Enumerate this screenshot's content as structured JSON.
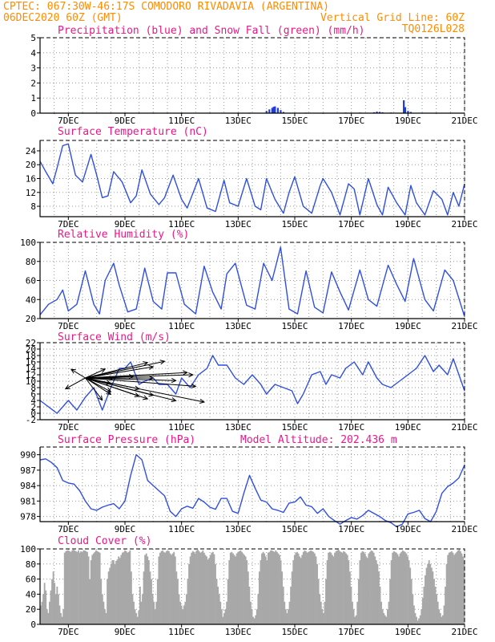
{
  "header": {
    "line1_left": "CPTEC:   067:30W-46:17S   COMODORO RIVADAVIA (ARGENTINA)",
    "line2_left": "06DEC2020 60Z (GMT)",
    "line2_right": "Vertical Grid Line: 60Z",
    "line3_right": "TQ0126L028"
  },
  "colors": {
    "header": "#ff8c00",
    "title": "#e8188a",
    "line": "#2f4fe0",
    "precip": "#1e3cdc",
    "snow": "#1ea01e",
    "cloud": "#a8a8a8",
    "grid": "#9a9a9a"
  },
  "x_ticks": [
    "7DEC",
    "9DEC",
    "11DEC",
    "13DEC",
    "15DEC",
    "17DEC",
    "19DEC",
    "21DEC"
  ],
  "chart_data": [
    {
      "type": "bar",
      "title": "Precipitation (blue) and Snow Fall (green) (mm/h)",
      "ylim": [
        0,
        5
      ],
      "yticks": [
        "0",
        "1",
        "2",
        "3",
        "4",
        "5"
      ],
      "series": [
        {
          "name": "Precipitation",
          "points": [
            [
              9.5,
              0.03
            ],
            [
              10.5,
              0.03
            ],
            [
              13.4,
              0.03
            ],
            [
              14.0,
              0.15
            ],
            [
              14.1,
              0.25
            ],
            [
              14.2,
              0.35
            ],
            [
              14.25,
              0.42
            ],
            [
              14.3,
              0.45
            ],
            [
              14.4,
              0.35
            ],
            [
              14.5,
              0.2
            ],
            [
              14.6,
              0.08
            ],
            [
              15.4,
              0.03
            ],
            [
              16.8,
              0.04
            ],
            [
              17.3,
              0.04
            ],
            [
              17.8,
              0.06
            ],
            [
              17.9,
              0.1
            ],
            [
              18.0,
              0.08
            ],
            [
              18.1,
              0.06
            ],
            [
              18.4,
              0.04
            ],
            [
              18.85,
              0.85
            ],
            [
              18.9,
              0.4
            ],
            [
              19.0,
              0.15
            ],
            [
              19.1,
              0.08
            ]
          ]
        },
        {
          "name": "Snow Fall",
          "points": [
            [
              6.5,
              0.02
            ],
            [
              7.5,
              0.03
            ],
            [
              8.5,
              0.03
            ],
            [
              9.0,
              0.02
            ],
            [
              10.0,
              0.03
            ],
            [
              11.0,
              0.02
            ],
            [
              12.0,
              0.03
            ],
            [
              13.0,
              0.02
            ],
            [
              16.0,
              0.02
            ],
            [
              19.5,
              0.03
            ],
            [
              20.0,
              0.02
            ],
            [
              20.5,
              0.03
            ]
          ]
        }
      ],
      "xlim": [
        6.0,
        21.0
      ]
    },
    {
      "type": "line",
      "title": "Surface Temperature (nC)",
      "ylim": [
        5,
        27
      ],
      "yticks": [
        "8",
        "12",
        "16",
        "20",
        "24"
      ],
      "x": [
        6.0,
        6.2,
        6.45,
        6.6,
        6.8,
        7.0,
        7.25,
        7.5,
        7.8,
        8.0,
        8.2,
        8.4,
        8.6,
        8.9,
        9.2,
        9.4,
        9.6,
        9.9,
        10.2,
        10.4,
        10.7,
        11.0,
        11.2,
        11.6,
        11.9,
        12.2,
        12.5,
        12.7,
        13.0,
        13.3,
        13.6,
        13.8,
        14.0,
        14.3,
        14.6,
        14.8,
        15.0,
        15.3,
        15.6,
        15.9,
        16.0,
        16.3,
        16.6,
        16.9,
        17.1,
        17.3,
        17.6,
        17.9,
        18.1,
        18.3,
        18.6,
        18.9,
        19.1,
        19.3,
        19.6,
        19.9,
        20.2,
        20.4,
        20.6,
        20.8,
        21.0
      ],
      "y": [
        21,
        18,
        14.5,
        19,
        25.5,
        26,
        17,
        15,
        23,
        17,
        10.5,
        11,
        18,
        15,
        9,
        11,
        18.5,
        11.5,
        8.5,
        10.5,
        17,
        10,
        7.5,
        16,
        7.5,
        6.5,
        15.5,
        9,
        8,
        16,
        8,
        7,
        16,
        10,
        6,
        12,
        16.5,
        8,
        6,
        14,
        16,
        12,
        5.5,
        14.5,
        13,
        5.5,
        16,
        8.5,
        5.5,
        13.5,
        9,
        5.5,
        14,
        9,
        5.5,
        12.5,
        10,
        5.5,
        12,
        8,
        14.5
      ]
    },
    {
      "type": "line",
      "title": "Relative Humidity (%)",
      "ylim": [
        20,
        100
      ],
      "yticks": [
        "20",
        "40",
        "60",
        "80",
        "100"
      ],
      "x": [
        6.0,
        6.3,
        6.6,
        6.8,
        7.0,
        7.3,
        7.6,
        7.9,
        8.1,
        8.3,
        8.6,
        8.8,
        9.1,
        9.4,
        9.7,
        10.0,
        10.3,
        10.5,
        10.8,
        11.1,
        11.5,
        11.8,
        12.1,
        12.4,
        12.6,
        12.9,
        13.3,
        13.6,
        13.9,
        14.2,
        14.5,
        14.8,
        15.1,
        15.4,
        15.7,
        16.0,
        16.3,
        16.6,
        16.9,
        17.3,
        17.6,
        17.9,
        18.3,
        18.6,
        18.9,
        19.2,
        19.6,
        19.9,
        20.3,
        20.6,
        21.0
      ],
      "y": [
        24,
        35,
        40,
        50,
        28,
        35,
        70,
        35,
        25,
        60,
        78,
        55,
        27,
        30,
        73,
        38,
        30,
        68,
        68,
        35,
        25,
        75,
        48,
        30,
        67,
        78,
        34,
        30,
        78,
        60,
        95,
        30,
        25,
        70,
        32,
        26,
        69,
        48,
        29,
        71,
        40,
        33,
        76,
        56,
        38,
        83,
        40,
        28,
        71,
        60,
        22
      ]
    },
    {
      "type": "line",
      "title": "Surface Wind (m/s)",
      "ylim": [
        -2,
        22
      ],
      "yticks": [
        "-2",
        "0",
        "2",
        "4",
        "6",
        "8",
        "10",
        "12",
        "14",
        "16",
        "18",
        "20",
        "22"
      ],
      "x": [
        6.0,
        6.3,
        6.6,
        6.8,
        7.0,
        7.3,
        7.6,
        7.9,
        8.2,
        8.5,
        8.8,
        9.0,
        9.2,
        9.5,
        9.7,
        10.0,
        10.2,
        10.5,
        10.8,
        11.0,
        11.3,
        11.6,
        11.9,
        12.1,
        12.3,
        12.6,
        12.9,
        13.2,
        13.5,
        13.8,
        14.0,
        14.3,
        14.6,
        14.9,
        15.1,
        15.3,
        15.6,
        15.9,
        16.1,
        16.3,
        16.6,
        16.8,
        17.1,
        17.4,
        17.6,
        17.9,
        18.1,
        18.4,
        18.7,
        19.0,
        19.3,
        19.6,
        19.9,
        20.1,
        20.4,
        20.6,
        21.0
      ],
      "y": [
        4,
        2,
        0,
        2,
        4,
        1,
        5,
        8,
        1,
        8,
        14,
        14,
        16,
        9,
        10,
        11,
        9,
        9,
        6,
        11,
        8,
        12,
        14,
        18,
        15,
        15,
        11,
        9,
        12,
        9,
        6,
        9,
        8,
        7,
        3,
        6,
        12,
        13,
        9,
        12,
        11,
        14,
        16,
        12,
        16,
        11,
        9,
        8,
        10,
        12,
        14,
        18,
        13,
        15,
        12,
        17,
        7
      ],
      "arrows": [
        [
          7.6,
          11,
          6.9,
          7.6
        ],
        [
          7.6,
          11,
          8.5,
          6.7
        ],
        [
          7.6,
          11,
          8.2,
          4.1
        ],
        [
          7.6,
          11,
          9.5,
          7.6
        ],
        [
          7.6,
          11,
          11.2,
          12.7
        ],
        [
          7.6,
          11,
          10.4,
          16.2
        ],
        [
          7.6,
          11,
          10.0,
          14.5
        ],
        [
          7.6,
          11,
          9.8,
          15.8
        ],
        [
          7.6,
          11,
          10.8,
          10.2
        ],
        [
          7.6,
          11,
          8.5,
          9.3
        ],
        [
          7.6,
          11,
          9.8,
          4.5
        ],
        [
          7.6,
          11,
          8.3,
          13.8
        ],
        [
          7.6,
          11,
          9.3,
          11.5
        ],
        [
          7.6,
          11,
          7.1,
          13.7
        ],
        [
          7.6,
          11,
          9.5,
          5.3
        ],
        [
          7.6,
          11,
          11.8,
          3.5
        ],
        [
          7.6,
          11,
          8.5,
          5.9
        ],
        [
          7.6,
          11,
          10.0,
          5.6
        ],
        [
          7.6,
          11,
          10.8,
          3.9
        ],
        [
          7.6,
          11,
          11.5,
          8.4
        ],
        [
          7.6,
          11,
          10.0,
          11.0
        ],
        [
          7.6,
          11,
          8.6,
          10.9
        ],
        [
          7.6,
          11,
          11.4,
          12.0
        ]
      ]
    },
    {
      "type": "line",
      "title": "Surface Pressure (hPa)",
      "annotation": "Model Altitude: 202.436 m",
      "ylim": [
        977,
        991.5
      ],
      "yticks": [
        "978",
        "981",
        "984",
        "987",
        "990"
      ],
      "x": [
        6.0,
        6.2,
        6.4,
        6.6,
        6.8,
        7.0,
        7.2,
        7.4,
        7.6,
        7.8,
        8.0,
        8.2,
        8.4,
        8.6,
        8.8,
        9.0,
        9.2,
        9.4,
        9.6,
        9.8,
        10.0,
        10.2,
        10.4,
        10.6,
        10.8,
        11.0,
        11.2,
        11.4,
        11.6,
        11.8,
        12.0,
        12.2,
        12.4,
        12.6,
        12.8,
        13.0,
        13.2,
        13.4,
        13.6,
        13.8,
        14.0,
        14.2,
        14.4,
        14.6,
        14.8,
        15.0,
        15.2,
        15.4,
        15.6,
        15.8,
        16.0,
        16.2,
        16.4,
        16.6,
        16.8,
        17.0,
        17.2,
        17.4,
        17.6,
        17.8,
        18.0,
        18.2,
        18.4,
        18.6,
        18.8,
        19.0,
        19.2,
        19.4,
        19.6,
        19.8,
        20.0,
        20.2,
        20.4,
        20.6,
        20.8,
        21.0
      ],
      "y": [
        989,
        989.2,
        988.5,
        987.5,
        985,
        984.5,
        984.3,
        983,
        981,
        979.5,
        979.2,
        979.8,
        980.2,
        980.5,
        979.5,
        981,
        986,
        990,
        989,
        985,
        984,
        983,
        982,
        979,
        978,
        979.5,
        980,
        979.6,
        981.5,
        980.8,
        979.8,
        979.4,
        981.5,
        981.5,
        979,
        978.6,
        982.5,
        986,
        983.5,
        981.2,
        980.8,
        979.5,
        979.2,
        978.8,
        980.6,
        980.8,
        981.8,
        980.2,
        979.9,
        978.6,
        979.5,
        978,
        977.2,
        976.5,
        977.2,
        977.8,
        977.5,
        978.2,
        979.2,
        978.6,
        978,
        977.2,
        976.8,
        976,
        976.5,
        978.5,
        978.8,
        979.2,
        977.6,
        977,
        979,
        982.5,
        983.8,
        984.5,
        985.5,
        988
      ]
    },
    {
      "type": "bar",
      "title": "Cloud Cover (%)",
      "ylim": [
        0,
        100
      ],
      "yticks": [
        "0",
        "20",
        "40",
        "60",
        "80",
        "100"
      ],
      "x_start": 6.0,
      "x_step": 0.0444,
      "values": [
        25,
        30,
        40,
        55,
        45,
        20,
        15,
        30,
        45,
        60,
        70,
        55,
        40,
        50,
        40,
        25,
        15,
        10,
        20,
        95,
        97,
        98,
        98,
        97,
        96,
        98,
        99,
        98,
        97,
        96,
        98,
        95,
        97,
        96,
        98,
        98,
        97,
        96,
        90,
        60,
        85,
        92,
        94,
        96,
        98,
        97,
        96,
        95,
        60,
        40,
        30,
        20,
        15,
        60,
        70,
        75,
        80,
        85,
        85,
        80,
        84,
        86,
        90,
        88,
        92,
        95,
        96,
        98,
        97,
        95,
        96,
        98,
        70,
        40,
        30,
        20,
        15,
        10,
        18,
        50,
        30,
        40,
        70,
        92,
        94,
        90,
        85,
        70,
        60,
        40,
        30,
        20,
        30,
        60,
        90,
        95,
        97,
        98,
        96,
        95,
        97,
        98,
        97,
        94,
        92,
        94,
        96,
        90,
        70,
        60,
        40,
        30,
        25,
        20,
        25,
        30,
        40,
        60,
        80,
        90,
        95,
        97,
        96,
        94,
        98,
        99,
        97,
        95,
        96,
        98,
        95,
        92,
        90,
        86,
        88,
        92,
        95,
        96,
        93,
        80,
        60,
        50,
        40,
        30,
        20,
        10,
        15,
        20,
        30,
        60,
        85,
        95,
        96,
        94,
        92,
        90,
        94,
        96,
        97,
        98,
        96,
        94,
        92,
        90,
        85,
        70,
        50,
        30,
        20,
        10,
        8,
        12,
        20,
        40,
        70,
        85,
        94,
        96,
        94,
        90,
        85,
        95,
        96,
        98,
        98,
        97,
        96,
        98,
        96,
        94,
        92,
        85,
        70,
        50,
        30,
        20,
        15,
        20,
        30,
        50,
        70,
        85,
        92,
        95,
        96,
        94,
        90,
        88,
        92,
        96,
        98,
        97,
        95,
        96,
        97,
        98,
        97,
        96,
        94,
        90,
        80,
        60,
        40,
        30,
        20,
        15,
        30,
        60,
        85,
        95,
        96,
        95,
        92,
        90,
        95,
        97,
        98,
        99,
        97,
        96,
        95,
        97,
        96,
        94,
        92,
        85,
        70,
        50,
        30,
        20,
        10,
        12,
        30,
        60,
        85,
        95,
        97,
        96,
        94,
        90,
        88,
        94,
        96,
        98,
        97,
        95,
        90,
        85,
        80,
        70,
        50,
        30,
        20,
        15,
        12,
        10,
        20,
        30,
        60,
        85,
        95,
        97,
        96,
        95,
        93,
        90,
        94,
        96,
        98,
        97,
        96,
        94,
        90,
        85,
        75,
        60,
        40,
        25,
        15,
        10,
        5,
        8,
        12,
        20,
        35,
        50,
        65,
        75,
        80,
        85,
        80,
        75,
        70,
        60,
        50,
        40,
        30,
        20,
        15,
        10,
        12,
        25,
        50,
        80,
        92,
        95,
        96,
        97,
        95,
        92,
        94,
        96,
        98,
        99,
        97,
        94,
        90,
        85,
        70,
        50,
        30,
        20,
        15,
        12,
        10,
        15,
        30,
        60,
        90,
        95,
        96,
        94,
        92,
        90,
        95,
        98,
        97
      ]
    }
  ]
}
